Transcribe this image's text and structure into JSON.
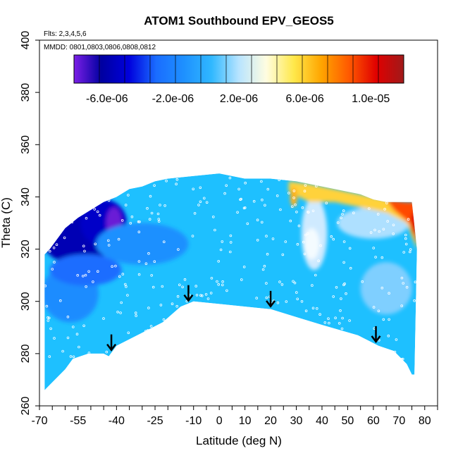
{
  "chart_data": {
    "type": "heatmap",
    "title": "ATOM1 Southbound EPV_GEOS5",
    "subtitle": "Flts: 2,3,4,5,6",
    "annotation": "MMDD: 0801,0803,0806,0808,0812",
    "xlabel": "Latitude (deg N)",
    "ylabel": "Theta (C)",
    "xlim": [
      -70,
      85
    ],
    "ylim": [
      260,
      400
    ],
    "x_ticks": [
      -70,
      -55,
      -40,
      -25,
      -10,
      0,
      10,
      20,
      30,
      40,
      50,
      60,
      70,
      80
    ],
    "y_ticks": [
      260,
      280,
      300,
      320,
      340,
      360,
      380,
      400
    ],
    "colorbar": {
      "labels": [
        "-6.0e-06",
        "-2.0e-06",
        "2.0e-06",
        "6.0e-06",
        "1.0e-05"
      ],
      "label_values": [
        -6e-06,
        -2e-06,
        2e-06,
        6e-06,
        1e-05
      ],
      "range": [
        -8e-06,
        1.2e-05
      ],
      "colors": [
        "#7b1fe6",
        "#0000a0",
        "#0000dd",
        "#1a6dff",
        "#1e90ff",
        "#30b8ff",
        "#b8e4ff",
        "#fffde0",
        "#ffe84a",
        "#ffa500",
        "#ff5a00",
        "#e00000",
        "#a01a1a"
      ]
    },
    "arrows_latitude": [
      -42,
      -12,
      20,
      61
    ],
    "ground_profile": {
      "lat": [
        -68,
        -66,
        -60,
        -57,
        -51,
        -45,
        -43,
        -40,
        -30,
        -22,
        -15,
        -10,
        0,
        10,
        20,
        30,
        40,
        54,
        58,
        62,
        68,
        73,
        75,
        76
      ],
      "theta": [
        266,
        268,
        274,
        278,
        280,
        280,
        279,
        283,
        288,
        292,
        298,
        300,
        299,
        298,
        297,
        294,
        291,
        287,
        285,
        283,
        281,
        276,
        272,
        272
      ]
    },
    "top_profile": {
      "lat": [
        -68,
        -66,
        -60,
        -55,
        -50,
        -45,
        -40,
        -35,
        -30,
        -25,
        -20,
        -10,
        0,
        10,
        20,
        30,
        40,
        50,
        55,
        60,
        65,
        70,
        75,
        77
      ],
      "theta": [
        318,
        320,
        328,
        332,
        335,
        338,
        340,
        343,
        344,
        346,
        347,
        348,
        349,
        347,
        347,
        346,
        344,
        342,
        341,
        339,
        338,
        338,
        338,
        320
      ]
    }
  }
}
